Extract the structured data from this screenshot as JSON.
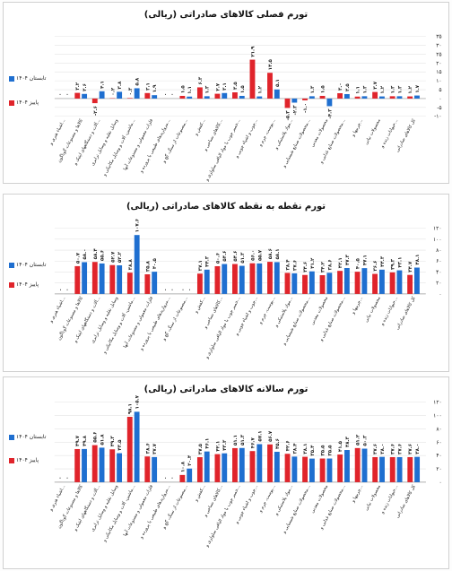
{
  "colors": {
    "blue": "#1f6fd0",
    "red": "#e0242b",
    "grid": "#e3e3e3",
    "text": "#222222"
  },
  "legend": {
    "series_a": "تابستان ۱۴۰۴",
    "series_b": "پاییز ۱۴۰۴"
  },
  "chart_data": [
    {
      "type": "bar",
      "title": "تورم فصلی کالاهای صادراتی (ریالی)",
      "categories": [
        "کل کالاهای صادراتی",
        "حیوانات زنده و…",
        "محصولات نباتی",
        "چربیها و…",
        "محصولات صنایع غذایی و…",
        "محصولات معدنی",
        "محصولات صنایع شیمیایی و…",
        "مواد پلاستیکی و…",
        "پوست، چرم و…",
        "چوب و اشیاء چوبی و…",
        "خمیر چوب یا مواد الیافی سلولزی و…",
        "کالاهای نساجی و…",
        "کفش و…",
        "مصنوعات از سنگ، گچ و…",
        "مرواریدهای طبیعی یا پرورده و…",
        "فلزات معمولی و مصنوعات آنها",
        "ماشین، آلات و وسایل مکانیکی و…",
        "وسایل نقلیه و وسایل ترابری",
        "آلات و دستگاههای اپتیک و…",
        "کالاها و مصنوعات گوناگون",
        "اشیاء هنری و…"
      ],
      "series": [
        {
          "name": "تابستان ۱۴۰۴",
          "values": [
            1.7,
            1.3,
            1.2,
            1.3,
            2.5,
            -4.3,
            1.3,
            -2.3,
            5.1,
            1.2,
            1.5,
            3.1,
            1.3,
            1.1,
            0,
            1.9,
            5.8,
            3.8,
            4.1,
            2.6,
            0
          ]
        },
        {
          "name": "پاییز ۱۴۰۴",
          "values": [
            1.2,
            1.3,
            3.7,
            1.1,
            3.0,
            1.5,
            -1.0,
            -5.3,
            14.5,
            21.9,
            3.5,
            2.7,
            6.3,
            1.5,
            0,
            3.1,
            0.3,
            0.2,
            -2.6,
            3.2,
            0
          ]
        }
      ],
      "ylim": [
        -10,
        35
      ],
      "yticks": [
        -10,
        -5,
        0,
        5,
        10,
        15,
        20,
        25,
        30,
        35
      ],
      "value_labels": {
        "a": [
          "۱.۷",
          "۱.۳",
          "۱.۲",
          "۱.۳",
          "۲.۵",
          "-۴.۳",
          "۱.۳",
          "-۲.۳",
          "۵.۱",
          "۱.۲",
          "۱.۵",
          "۳.۱",
          "۱.۳",
          "۱.۱",
          "۰",
          "۱.۹",
          "۵.۸",
          "۳.۸",
          "۴.۱",
          "۲.۶",
          "۰"
        ],
        "b": [
          "۱.۲",
          "۱.۳",
          "۳.۷",
          "۱.۱",
          "۳.۰",
          "۱.۵",
          "-۱.۰",
          "-۵.۳",
          "۱۴.۵",
          "۲۱.۹",
          "۳.۵",
          "۲.۷",
          "۶.۳",
          "۱.۵",
          "۰",
          "۳.۱",
          "۰.۳",
          "۰.۲",
          "-۲.۶",
          "۳.۲",
          "۰"
        ]
      }
    },
    {
      "type": "bar",
      "title": "تورم نقطه به نقطه کالاهای صادراتی (ریالی)",
      "categories": [
        "کل کالاهای صادراتی",
        "حیوانات زنده و…",
        "محصولات نباتی",
        "چربیها و…",
        "محصولات صنایع غذایی و…",
        "محصولات معدنی",
        "محصولات صنایع شیمیایی و…",
        "مواد پلاستیکی و…",
        "پوست، چرم و…",
        "چوب و اشیاء چوبی و…",
        "خمیر چوب یا مواد الیافی سلولزی و…",
        "کالاهای نساجی و…",
        "کفش و…",
        "مصنوعات از سنگ، گچ و…",
        "مرواریدهای طبیعی یا پرورده و…",
        "فلزات معمولی و مصنوعات آنها",
        "ماشین، آلات و وسایل مکانیکی و…",
        "وسایل نقلیه و وسایل ترابری",
        "آلات و دستگاههای اپتیک و…",
        "کالاها و مصنوعات گوناگون",
        "اشیاء هنری و…"
      ],
      "series": [
        {
          "name": "تابستان ۱۴۰۴",
          "values": [
            48.1,
            43.1,
            44.3,
            47.1,
            47.3,
            38.6,
            41.2,
            37.6,
            58.1,
            55.7,
            51.3,
            54.6,
            44.3,
            0,
            0,
            40.5,
            107.6,
            52.2,
            55.6,
            58.0,
            0
          ]
        },
        {
          "name": "پاییز ۱۴۰۴",
          "values": [
            34.7,
            39.3,
            36.6,
            40.5,
            42.1,
            34.2,
            34.6,
            38.4,
            58.6,
            56.0,
            54.6,
            50.6,
            37.1,
            0,
            0,
            35.8,
            38.8,
            52.7,
            58.4,
            50.7,
            0
          ]
        }
      ],
      "ylim": [
        0,
        120
      ],
      "yticks": [
        0,
        20,
        40,
        60,
        80,
        100,
        120
      ],
      "value_labels": {
        "a": [
          "۴۸.۱",
          "۴۳.۱",
          "۴۴.۳",
          "۴۷.۱",
          "۴۷.۳",
          "۳۸.۶",
          "۴۱.۲",
          "۳۷.۶",
          "۵۸.۱",
          "۵۵.۷",
          "۵۱.۳",
          "۵۴.۶",
          "۴۴.۳",
          "۰",
          "۰",
          "۴۰.۵",
          "۱۰۷.۶",
          "۵۲.۲",
          "۵۵.۶",
          "۵۸.۰",
          "۰"
        ],
        "b": [
          "۳۴.۷",
          "۳۹.۳",
          "۳۶.۶",
          "۴۰.۵",
          "۴۲.۱",
          "۳۴.۲",
          "۳۴.۶",
          "۳۸.۴",
          "۵۸.۶",
          "۵۶.۰",
          "۵۴.۶",
          "۵۰.۶",
          "۳۷.۱",
          "۰",
          "۰",
          "۳۵.۸",
          "۳۸.۸",
          "۵۲.۷",
          "۵۸.۴",
          "۵۰.۷",
          "۰"
        ]
      }
    },
    {
      "type": "bar",
      "title": "تورم سالانه کالاهای صادراتی (ریالی)",
      "categories": [
        "کل کالاهای صادراتی",
        "حیوانات زنده و…",
        "محصولات نباتی",
        "چربیها و…",
        "محصولات صنایع غذایی و…",
        "محصولات معدنی",
        "محصولات صنایع شیمیایی و…",
        "مواد پلاستیکی و…",
        "پوست، چرم و…",
        "چوب و اشیاء چوبی و…",
        "خمیر چوب یا مواد الیافی سلولزی و…",
        "کالاهای نساجی و…",
        "کفش و…",
        "مصنوعات از سنگ، گچ و…",
        "مرواریدهای طبیعی یا پرورده و…",
        "فلزات معمولی و مصنوعات آنها",
        "ماشین، آلات و وسایل مکانیکی و…",
        "وسایل نقلیه و وسایل ترابری",
        "آلات و دستگاههای اپتیک و…",
        "کالاها و مصنوعات گوناگون",
        "اشیاء هنری و…"
      ],
      "series": [
        {
          "name": "تابستان ۱۴۰۴",
          "values": [
            38.0,
            37.6,
            38.0,
            50.3,
            48.3,
            35.5,
            35.4,
            38.4,
            45.6,
            57.1,
            51.3,
            43.3,
            46.1,
            20.4,
            0,
            37.7,
            105.7,
            43.5,
            51.8,
            49.8,
            0
          ]
        },
        {
          "name": "پاییز ۱۴۰۴",
          "values": [
            37.6,
            37.6,
            37.6,
            51.2,
            41.5,
            35.5,
            38.1,
            42.6,
            56.7,
            46.7,
            51.1,
            42.1,
            37.5,
            10.8,
            0,
            38.6,
            98.1,
            49.3,
            55.6,
            49.7,
            0
          ]
        }
      ],
      "ylim": [
        0,
        120
      ],
      "yticks": [
        0,
        20,
        40,
        60,
        80,
        100,
        120
      ],
      "value_labels": {
        "a": [
          "۳۸.۰",
          "۳۷.۶",
          "۳۸.۰",
          "۵۰.۳",
          "۴۸.۳",
          "۳۵.۵",
          "۳۵.۴",
          "۳۸.۴",
          "۴۵.۶",
          "۵۷.۱",
          "۵۱.۳",
          "۴۳.۳",
          "۴۶.۱",
          "۲۰.۴",
          "۰",
          "۳۷.۷",
          "۱۰۵.۷",
          "۴۳.۵",
          "۵۱.۸",
          "۴۹.۸",
          "۰"
        ],
        "b": [
          "۳۷.۶",
          "۳۷.۶",
          "۳۷.۶",
          "۵۱.۲",
          "۴۱.۵",
          "۳۵.۵",
          "۳۸.۱",
          "۴۲.۶",
          "۵۶.۷",
          "۴۶.۷",
          "۵۱.۱",
          "۴۲.۱",
          "۳۷.۵",
          "۱۰.۸",
          "۰",
          "۳۸.۶",
          "۹۸.۱",
          "۴۹.۳",
          "۵۵.۶",
          "۴۹.۷",
          "۰"
        ]
      }
    }
  ]
}
